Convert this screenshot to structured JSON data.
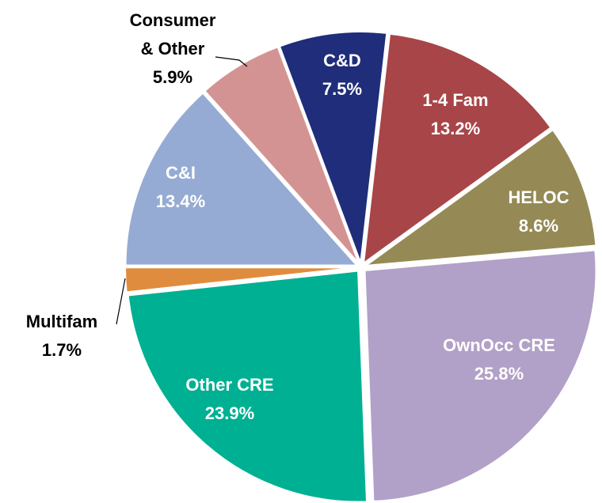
{
  "chart_data": {
    "type": "pie",
    "categories": [
      "C&D",
      "1-4 Fam",
      "HELOC",
      "OwnOcc CRE",
      "Other CRE",
      "Multifam",
      "C&I",
      "Consumer & Other"
    ],
    "values": [
      7.5,
      13.2,
      8.6,
      25.8,
      23.9,
      1.7,
      13.4,
      5.9
    ],
    "value_labels": [
      "7.5%",
      "13.2%",
      "8.6%",
      "25.8%",
      "23.9%",
      "1.7%",
      "13.4%",
      "5.9%"
    ],
    "colors": [
      "#1f2d7a",
      "#a84548",
      "#958a55",
      "#b1a0c7",
      "#00b092",
      "#e08c3e",
      "#95abd3",
      "#d49393"
    ]
  }
}
